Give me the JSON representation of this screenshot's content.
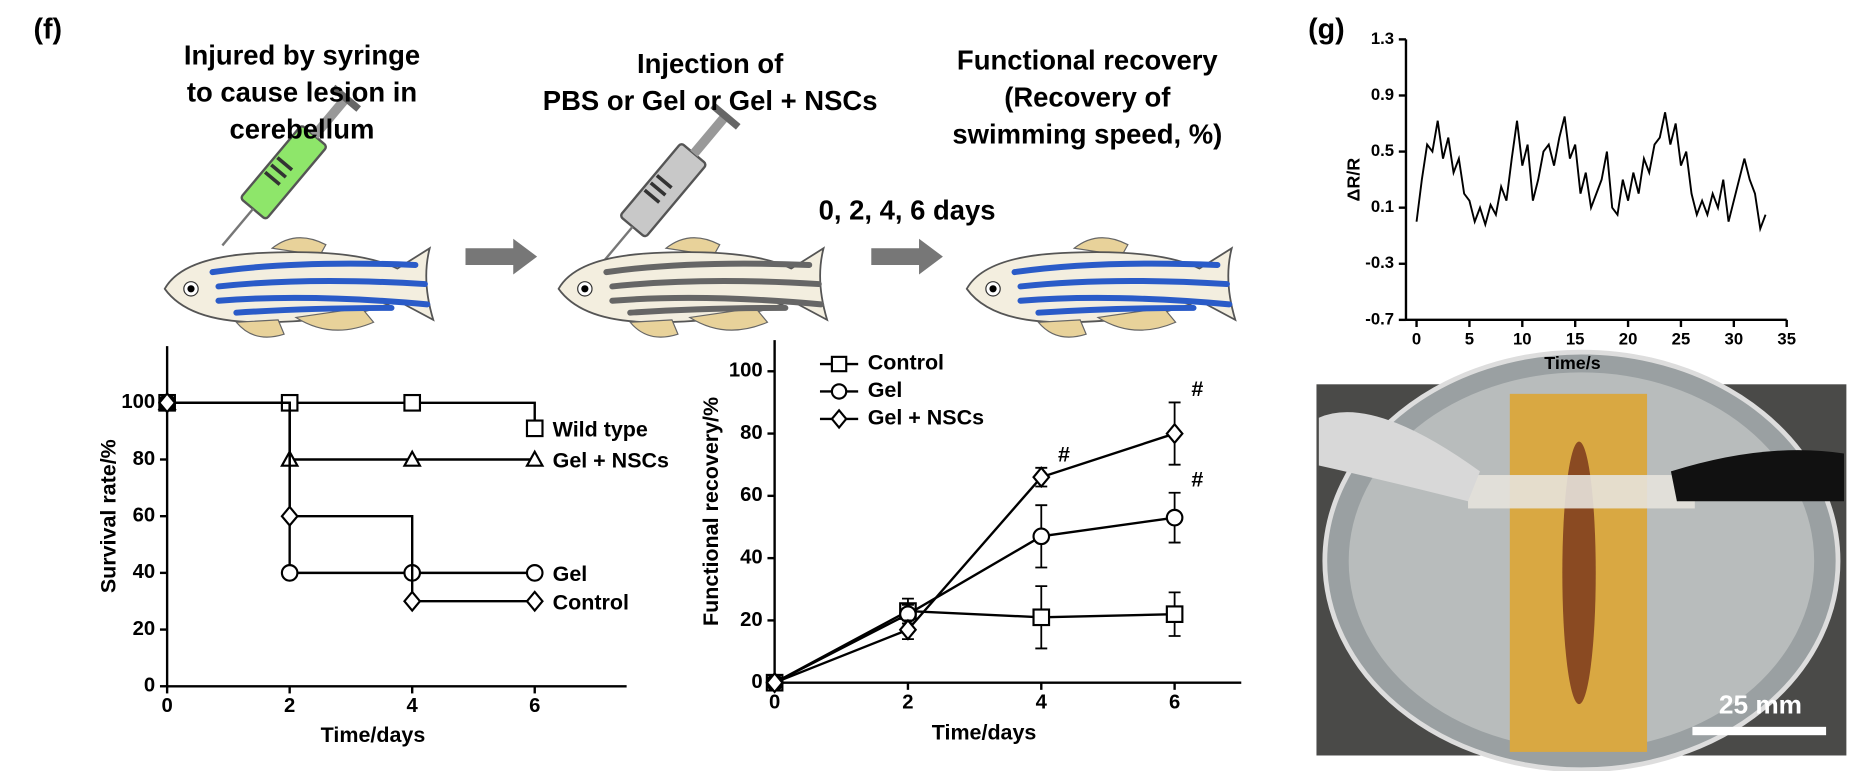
{
  "figure": {
    "panel_f": "(f)",
    "panel_g": "(g)",
    "steps": [
      [
        "Injured by syringe",
        "to cause lesion in",
        "cerebellum"
      ],
      [
        "Injection of",
        "PBS or Gel or Gel + NSCs"
      ],
      [
        "Functional recovery",
        "(Recovery of",
        "swimming speed, %)"
      ]
    ],
    "interval": "0, 2, 4, 6 days",
    "scale_bar": "25 mm"
  },
  "chart_data": [
    {
      "type": "step",
      "xlabel": "Time/days",
      "ylabel": "Survival rate/%",
      "x": [
        0,
        2,
        4,
        6
      ],
      "xlim": [
        0,
        7.5
      ],
      "xticks": [
        0,
        2,
        4,
        6
      ],
      "ylim": [
        0,
        120
      ],
      "yticks": [
        0,
        20,
        40,
        60,
        80,
        100
      ],
      "end_labels": true,
      "series": [
        {
          "name": "Wild type",
          "color": "#000000",
          "marker": "square",
          "values": [
            100,
            100,
            100,
            91
          ]
        },
        {
          "name": "Gel + NSCs",
          "color": "#000000",
          "marker": "triangle",
          "values": [
            100,
            80,
            80,
            80
          ]
        },
        {
          "name": "Gel",
          "color": "#000000",
          "marker": "circle",
          "values": [
            100,
            40,
            40,
            40
          ]
        },
        {
          "name": "Control",
          "color": "#000000",
          "marker": "diamond",
          "values": [
            100,
            60,
            30,
            30
          ]
        }
      ]
    },
    {
      "type": "line",
      "xlabel": "Time/days",
      "ylabel": "Functional recovery/%",
      "x": [
        0,
        2,
        4,
        6
      ],
      "xlim": [
        0,
        7
      ],
      "xticks": [
        0,
        2,
        4,
        6
      ],
      "ylim": [
        0,
        110
      ],
      "yticks": [
        0,
        20,
        40,
        60,
        80,
        100
      ],
      "legend": "upper left",
      "series": [
        {
          "name": "Control",
          "color": "#000000",
          "marker": "square",
          "values": [
            0,
            23,
            21,
            22
          ],
          "errors": [
            0,
            4,
            10,
            7
          ]
        },
        {
          "name": "Gel",
          "color": "#000000",
          "marker": "circle",
          "values": [
            0,
            22,
            47,
            53
          ],
          "errors": [
            0,
            3,
            10,
            8
          ]
        },
        {
          "name": "Gel + NSCs",
          "color": "#000000",
          "marker": "diamond",
          "values": [
            0,
            17,
            66,
            80
          ],
          "errors": [
            0,
            3,
            3,
            10
          ]
        }
      ],
      "annotations": [
        {
          "text": "#",
          "x": 4,
          "series": "Gel + NSCs"
        },
        {
          "text": "#",
          "x": 6,
          "series": "Gel + NSCs"
        },
        {
          "text": "#",
          "x": 6,
          "series": "Gel"
        }
      ]
    },
    {
      "type": "line",
      "xlabel": "Time/s",
      "ylabel": "ΔR/R",
      "x": [
        0,
        0.5,
        1,
        1.5,
        2,
        2.5,
        3,
        3.5,
        4,
        4.5,
        5,
        5.5,
        6,
        6.5,
        7,
        7.5,
        8,
        8.5,
        9,
        9.5,
        10,
        10.5,
        11,
        11.5,
        12,
        12.5,
        13,
        13.5,
        14,
        14.5,
        15,
        15.5,
        16,
        16.5,
        17,
        17.5,
        18,
        18.5,
        19,
        19.5,
        20,
        20.5,
        21,
        21.5,
        22,
        22.5,
        23,
        23.5,
        24,
        24.5,
        25,
        25.5,
        26,
        26.5,
        27,
        27.5,
        28,
        28.5,
        29,
        29.5,
        30,
        30.5,
        31,
        31.5,
        32,
        32.5,
        33
      ],
      "values": [
        0.0,
        0.3,
        0.55,
        0.5,
        0.72,
        0.45,
        0.6,
        0.35,
        0.45,
        0.2,
        0.15,
        0.0,
        0.1,
        -0.02,
        0.12,
        0.05,
        0.25,
        0.15,
        0.45,
        0.72,
        0.4,
        0.55,
        0.15,
        0.3,
        0.5,
        0.55,
        0.4,
        0.6,
        0.75,
        0.45,
        0.55,
        0.2,
        0.35,
        0.1,
        0.2,
        0.3,
        0.5,
        0.1,
        0.05,
        0.3,
        0.15,
        0.35,
        0.2,
        0.45,
        0.35,
        0.55,
        0.6,
        0.78,
        0.55,
        0.7,
        0.4,
        0.5,
        0.2,
        0.05,
        0.15,
        0.05,
        0.2,
        0.1,
        0.3,
        0.0,
        0.15,
        0.3,
        0.45,
        0.3,
        0.2,
        -0.05,
        0.05
      ],
      "color": "#000000",
      "xlim": [
        -1,
        35
      ],
      "xticks": [
        0,
        5,
        10,
        15,
        20,
        25,
        30,
        35
      ],
      "ylim": [
        -0.7,
        1.3
      ],
      "yticks": [
        -0.7,
        -0.3,
        0.1,
        0.5,
        0.9,
        1.3
      ]
    }
  ]
}
